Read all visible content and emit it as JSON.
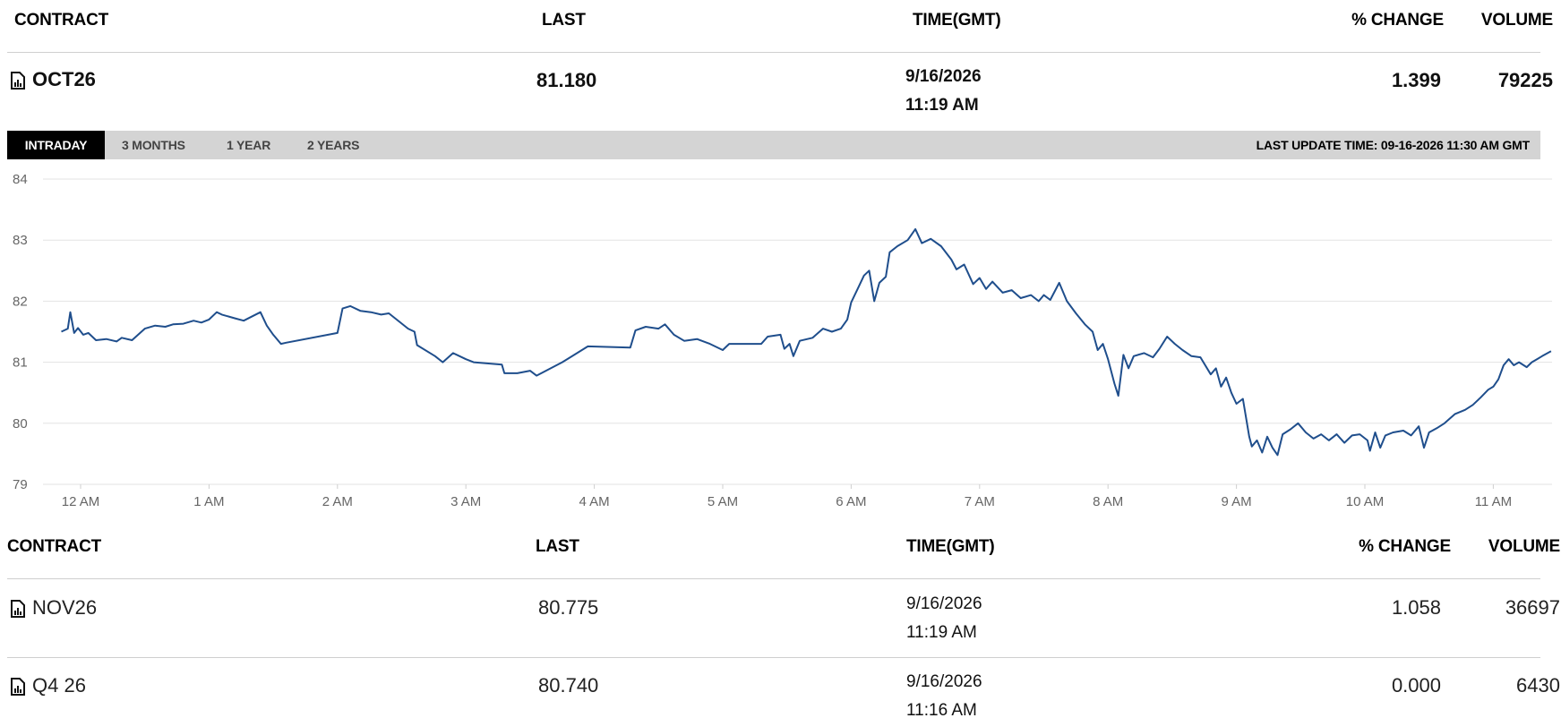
{
  "headers": {
    "contract": "CONTRACT",
    "last": "LAST",
    "time": "TIME(GMT)",
    "change": "% CHANGE",
    "volume": "VOLUME"
  },
  "main": {
    "contract": "OCT26",
    "last": "81.180",
    "date": "9/16/2026",
    "time": "11:19 AM",
    "change": "1.399",
    "volume": "79225"
  },
  "tabs": [
    {
      "label": "INTRADAY",
      "active": true
    },
    {
      "label": "3 MONTHS",
      "active": false
    },
    {
      "label": "1 YEAR",
      "active": false
    },
    {
      "label": "2 YEARS",
      "active": false
    }
  ],
  "last_update": "LAST UPDATE TIME: 09-16-2026 11:30 AM GMT",
  "rows": [
    {
      "contract": "NOV26",
      "last": "80.775",
      "date": "9/16/2026",
      "time": "11:19 AM",
      "change": "1.058",
      "volume": "36697"
    },
    {
      "contract": "Q4 26",
      "last": "80.740",
      "date": "9/16/2026",
      "time": "11:16 AM",
      "change": "0.000",
      "volume": "6430"
    }
  ],
  "icons": {
    "contract": "chart-document-icon"
  },
  "colors": {
    "line": "#1f4e8c",
    "tabbar": "#d4d4d4",
    "active_tab": "#000000"
  },
  "chart_data": {
    "type": "line",
    "ylim": [
      79,
      84
    ],
    "yticks": [
      79,
      80,
      81,
      82,
      83,
      84
    ],
    "xlim": [
      -0.15,
      11.45
    ],
    "xticks": [
      0,
      1,
      2,
      3,
      4,
      5,
      6,
      7,
      8,
      9,
      10,
      11
    ],
    "xtick_labels": [
      "12 AM",
      "1 AM",
      "2 AM",
      "3 AM",
      "4 AM",
      "5 AM",
      "6 AM",
      "7 AM",
      "8 AM",
      "9 AM",
      "10 AM",
      "11 AM"
    ],
    "grid": true,
    "series": [
      {
        "points": [
          [
            -0.15,
            81.5
          ],
          [
            -0.1,
            81.55
          ],
          [
            -0.08,
            81.82
          ],
          [
            -0.05,
            81.48
          ],
          [
            -0.02,
            81.56
          ],
          [
            0.02,
            81.45
          ],
          [
            0.06,
            81.48
          ],
          [
            0.12,
            81.36
          ],
          [
            0.2,
            81.38
          ],
          [
            0.28,
            81.34
          ],
          [
            0.32,
            81.4
          ],
          [
            0.4,
            81.36
          ],
          [
            0.5,
            81.55
          ],
          [
            0.58,
            81.6
          ],
          [
            0.66,
            81.58
          ],
          [
            0.72,
            81.62
          ],
          [
            0.8,
            81.63
          ],
          [
            0.88,
            81.68
          ],
          [
            0.94,
            81.65
          ],
          [
            1.0,
            81.7
          ],
          [
            1.06,
            81.82
          ],
          [
            1.1,
            81.78
          ],
          [
            1.2,
            81.72
          ],
          [
            1.27,
            81.68
          ],
          [
            1.4,
            81.82
          ],
          [
            1.45,
            81.6
          ],
          [
            1.5,
            81.45
          ],
          [
            1.56,
            81.3
          ],
          [
            1.6,
            81.32
          ],
          [
            2.0,
            81.48
          ],
          [
            2.04,
            81.88
          ],
          [
            2.1,
            81.92
          ],
          [
            2.18,
            81.84
          ],
          [
            2.26,
            81.82
          ],
          [
            2.34,
            81.78
          ],
          [
            2.4,
            81.8
          ],
          [
            2.55,
            81.55
          ],
          [
            2.6,
            81.5
          ],
          [
            2.62,
            81.28
          ],
          [
            2.76,
            81.1
          ],
          [
            2.82,
            81.0
          ],
          [
            2.9,
            81.15
          ],
          [
            3.0,
            81.05
          ],
          [
            3.06,
            81.0
          ],
          [
            3.28,
            80.96
          ],
          [
            3.3,
            80.82
          ],
          [
            3.4,
            80.82
          ],
          [
            3.5,
            80.86
          ],
          [
            3.55,
            80.78
          ],
          [
            3.75,
            81.0
          ],
          [
            3.95,
            81.26
          ],
          [
            4.28,
            81.24
          ],
          [
            4.32,
            81.52
          ],
          [
            4.4,
            81.58
          ],
          [
            4.5,
            81.55
          ],
          [
            4.55,
            81.62
          ],
          [
            4.62,
            81.45
          ],
          [
            4.7,
            81.35
          ],
          [
            4.8,
            81.38
          ],
          [
            4.9,
            81.3
          ],
          [
            5.0,
            81.2
          ],
          [
            5.05,
            81.3
          ],
          [
            5.3,
            81.3
          ],
          [
            5.35,
            81.42
          ],
          [
            5.45,
            81.45
          ],
          [
            5.48,
            81.22
          ],
          [
            5.52,
            81.3
          ],
          [
            5.55,
            81.1
          ],
          [
            5.6,
            81.35
          ],
          [
            5.7,
            81.4
          ],
          [
            5.78,
            81.55
          ],
          [
            5.85,
            81.5
          ],
          [
            5.92,
            81.55
          ],
          [
            5.97,
            81.7
          ],
          [
            6.0,
            81.98
          ],
          [
            6.05,
            82.2
          ],
          [
            6.1,
            82.42
          ],
          [
            6.14,
            82.5
          ],
          [
            6.18,
            82.0
          ],
          [
            6.22,
            82.3
          ],
          [
            6.27,
            82.4
          ],
          [
            6.3,
            82.8
          ],
          [
            6.36,
            82.9
          ],
          [
            6.44,
            83.0
          ],
          [
            6.5,
            83.18
          ],
          [
            6.55,
            82.95
          ],
          [
            6.62,
            83.02
          ],
          [
            6.7,
            82.9
          ],
          [
            6.78,
            82.68
          ],
          [
            6.82,
            82.52
          ],
          [
            6.88,
            82.6
          ],
          [
            6.95,
            82.28
          ],
          [
            7.0,
            82.38
          ],
          [
            7.05,
            82.2
          ],
          [
            7.1,
            82.32
          ],
          [
            7.18,
            82.14
          ],
          [
            7.25,
            82.18
          ],
          [
            7.32,
            82.05
          ],
          [
            7.4,
            82.1
          ],
          [
            7.46,
            82.0
          ],
          [
            7.5,
            82.1
          ],
          [
            7.55,
            82.02
          ],
          [
            7.62,
            82.3
          ],
          [
            7.68,
            82.0
          ],
          [
            7.75,
            81.8
          ],
          [
            7.82,
            81.62
          ],
          [
            7.88,
            81.5
          ],
          [
            7.92,
            81.2
          ],
          [
            7.96,
            81.3
          ],
          [
            8.0,
            81.05
          ],
          [
            8.05,
            80.65
          ],
          [
            8.08,
            80.45
          ],
          [
            8.12,
            81.12
          ],
          [
            8.16,
            80.9
          ],
          [
            8.2,
            81.1
          ],
          [
            8.28,
            81.15
          ],
          [
            8.35,
            81.08
          ],
          [
            8.4,
            81.22
          ],
          [
            8.46,
            81.42
          ],
          [
            8.52,
            81.3
          ],
          [
            8.58,
            81.2
          ],
          [
            8.65,
            81.1
          ],
          [
            8.72,
            81.08
          ],
          [
            8.8,
            80.8
          ],
          [
            8.84,
            80.9
          ],
          [
            8.88,
            80.6
          ],
          [
            8.92,
            80.75
          ],
          [
            8.96,
            80.5
          ],
          [
            9.0,
            80.32
          ],
          [
            9.05,
            80.4
          ],
          [
            9.1,
            79.78
          ],
          [
            9.12,
            79.62
          ],
          [
            9.16,
            79.72
          ],
          [
            9.2,
            79.52
          ],
          [
            9.24,
            79.78
          ],
          [
            9.28,
            79.6
          ],
          [
            9.32,
            79.48
          ],
          [
            9.36,
            79.82
          ],
          [
            9.42,
            79.9
          ],
          [
            9.48,
            80.0
          ],
          [
            9.54,
            79.85
          ],
          [
            9.6,
            79.75
          ],
          [
            9.66,
            79.82
          ],
          [
            9.72,
            79.72
          ],
          [
            9.78,
            79.82
          ],
          [
            9.84,
            79.68
          ],
          [
            9.9,
            79.8
          ],
          [
            9.96,
            79.82
          ],
          [
            10.02,
            79.72
          ],
          [
            10.04,
            79.55
          ],
          [
            10.08,
            79.85
          ],
          [
            10.12,
            79.6
          ],
          [
            10.16,
            79.8
          ],
          [
            10.22,
            79.85
          ],
          [
            10.3,
            79.88
          ],
          [
            10.36,
            79.8
          ],
          [
            10.42,
            79.95
          ],
          [
            10.46,
            79.6
          ],
          [
            10.5,
            79.85
          ],
          [
            10.56,
            79.92
          ],
          [
            10.62,
            80.0
          ],
          [
            10.7,
            80.15
          ],
          [
            10.78,
            80.22
          ],
          [
            10.84,
            80.3
          ],
          [
            10.9,
            80.42
          ],
          [
            10.96,
            80.55
          ],
          [
            11.0,
            80.6
          ],
          [
            11.04,
            80.72
          ],
          [
            11.08,
            80.95
          ],
          [
            11.12,
            81.05
          ],
          [
            11.16,
            80.95
          ],
          [
            11.2,
            81.0
          ],
          [
            11.26,
            80.92
          ],
          [
            11.3,
            81.0
          ],
          [
            11.34,
            81.05
          ],
          [
            11.38,
            81.1
          ],
          [
            11.45,
            81.18
          ]
        ]
      }
    ]
  }
}
